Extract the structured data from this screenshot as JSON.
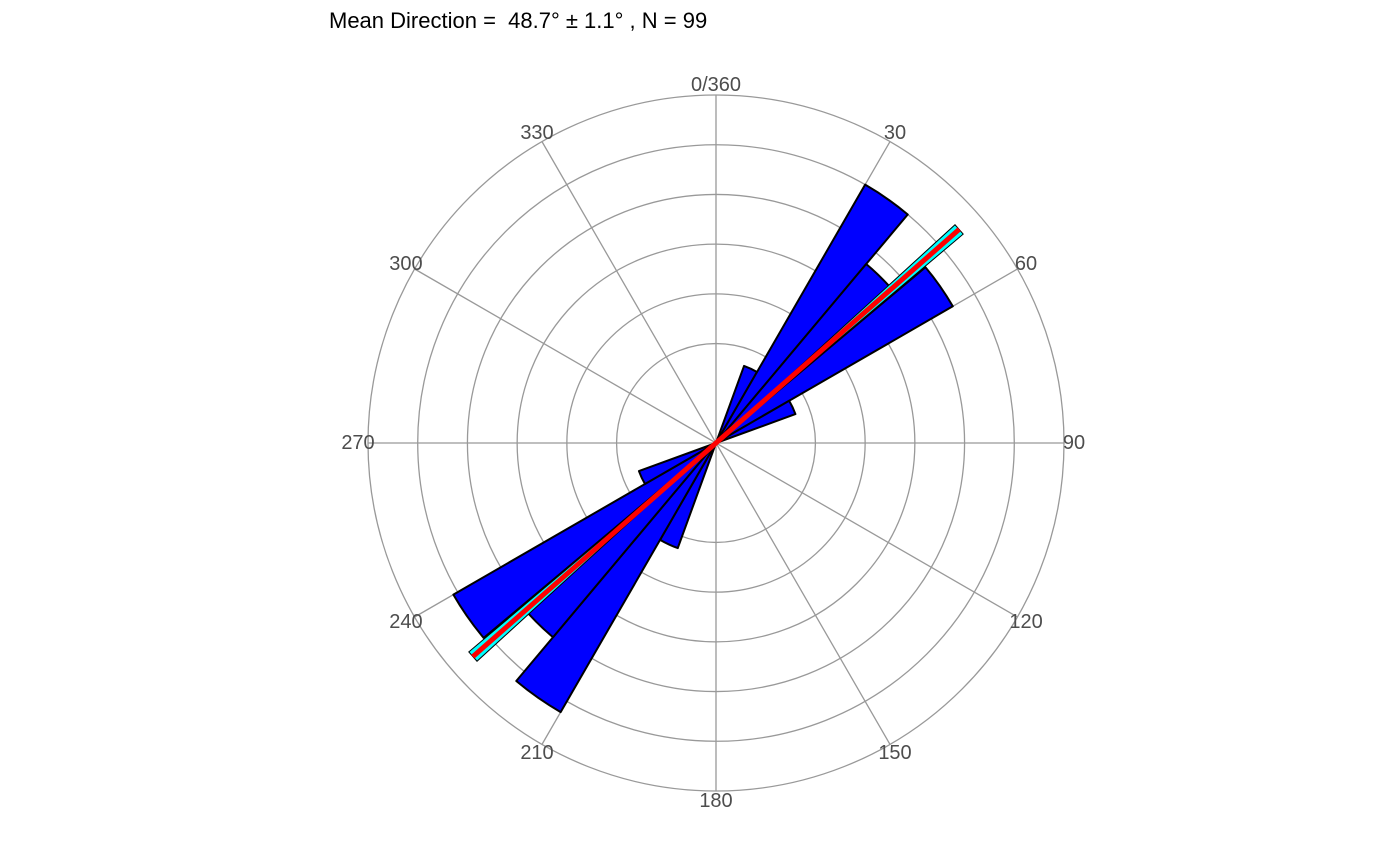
{
  "chart_data": {
    "type": "rose",
    "title": "Mean Direction =  48.7° ± 1.1° , N = 99",
    "angle_ticks": [
      "0/360",
      "30",
      "60",
      "90",
      "120",
      "150",
      "180",
      "210",
      "240",
      "270",
      "300",
      "330"
    ],
    "angle_tick_values": [
      0,
      30,
      60,
      90,
      120,
      150,
      180,
      210,
      240,
      270,
      300,
      330
    ],
    "bin_width_deg": 10,
    "radial_max": 14,
    "radial_grid": [
      4,
      6,
      8,
      10,
      12,
      14
    ],
    "grid": true,
    "bars": [
      {
        "start": 20,
        "end": 30,
        "value": 3.3
      },
      {
        "start": 30,
        "end": 40,
        "value": 12.0
      },
      {
        "start": 40,
        "end": 50,
        "value": 9.4
      },
      {
        "start": 50,
        "end": 60,
        "value": 11.0
      },
      {
        "start": 60,
        "end": 70,
        "value": 3.4
      },
      {
        "start": 200,
        "end": 210,
        "value": 4.5
      },
      {
        "start": 210,
        "end": 220,
        "value": 12.5
      },
      {
        "start": 220,
        "end": 230,
        "value": 10.2
      },
      {
        "start": 230,
        "end": 240,
        "value": 12.2
      },
      {
        "start": 240,
        "end": 250,
        "value": 3.3
      }
    ],
    "mean_direction_deg": 48.7,
    "mean_direction_error_deg": 1.1,
    "n": 99,
    "colors": {
      "bar_fill": "#0000ff",
      "bar_stroke": "#000000",
      "mean_line": "#ff0000",
      "confidence_band": "#00ffff",
      "grid": "#999999"
    }
  }
}
